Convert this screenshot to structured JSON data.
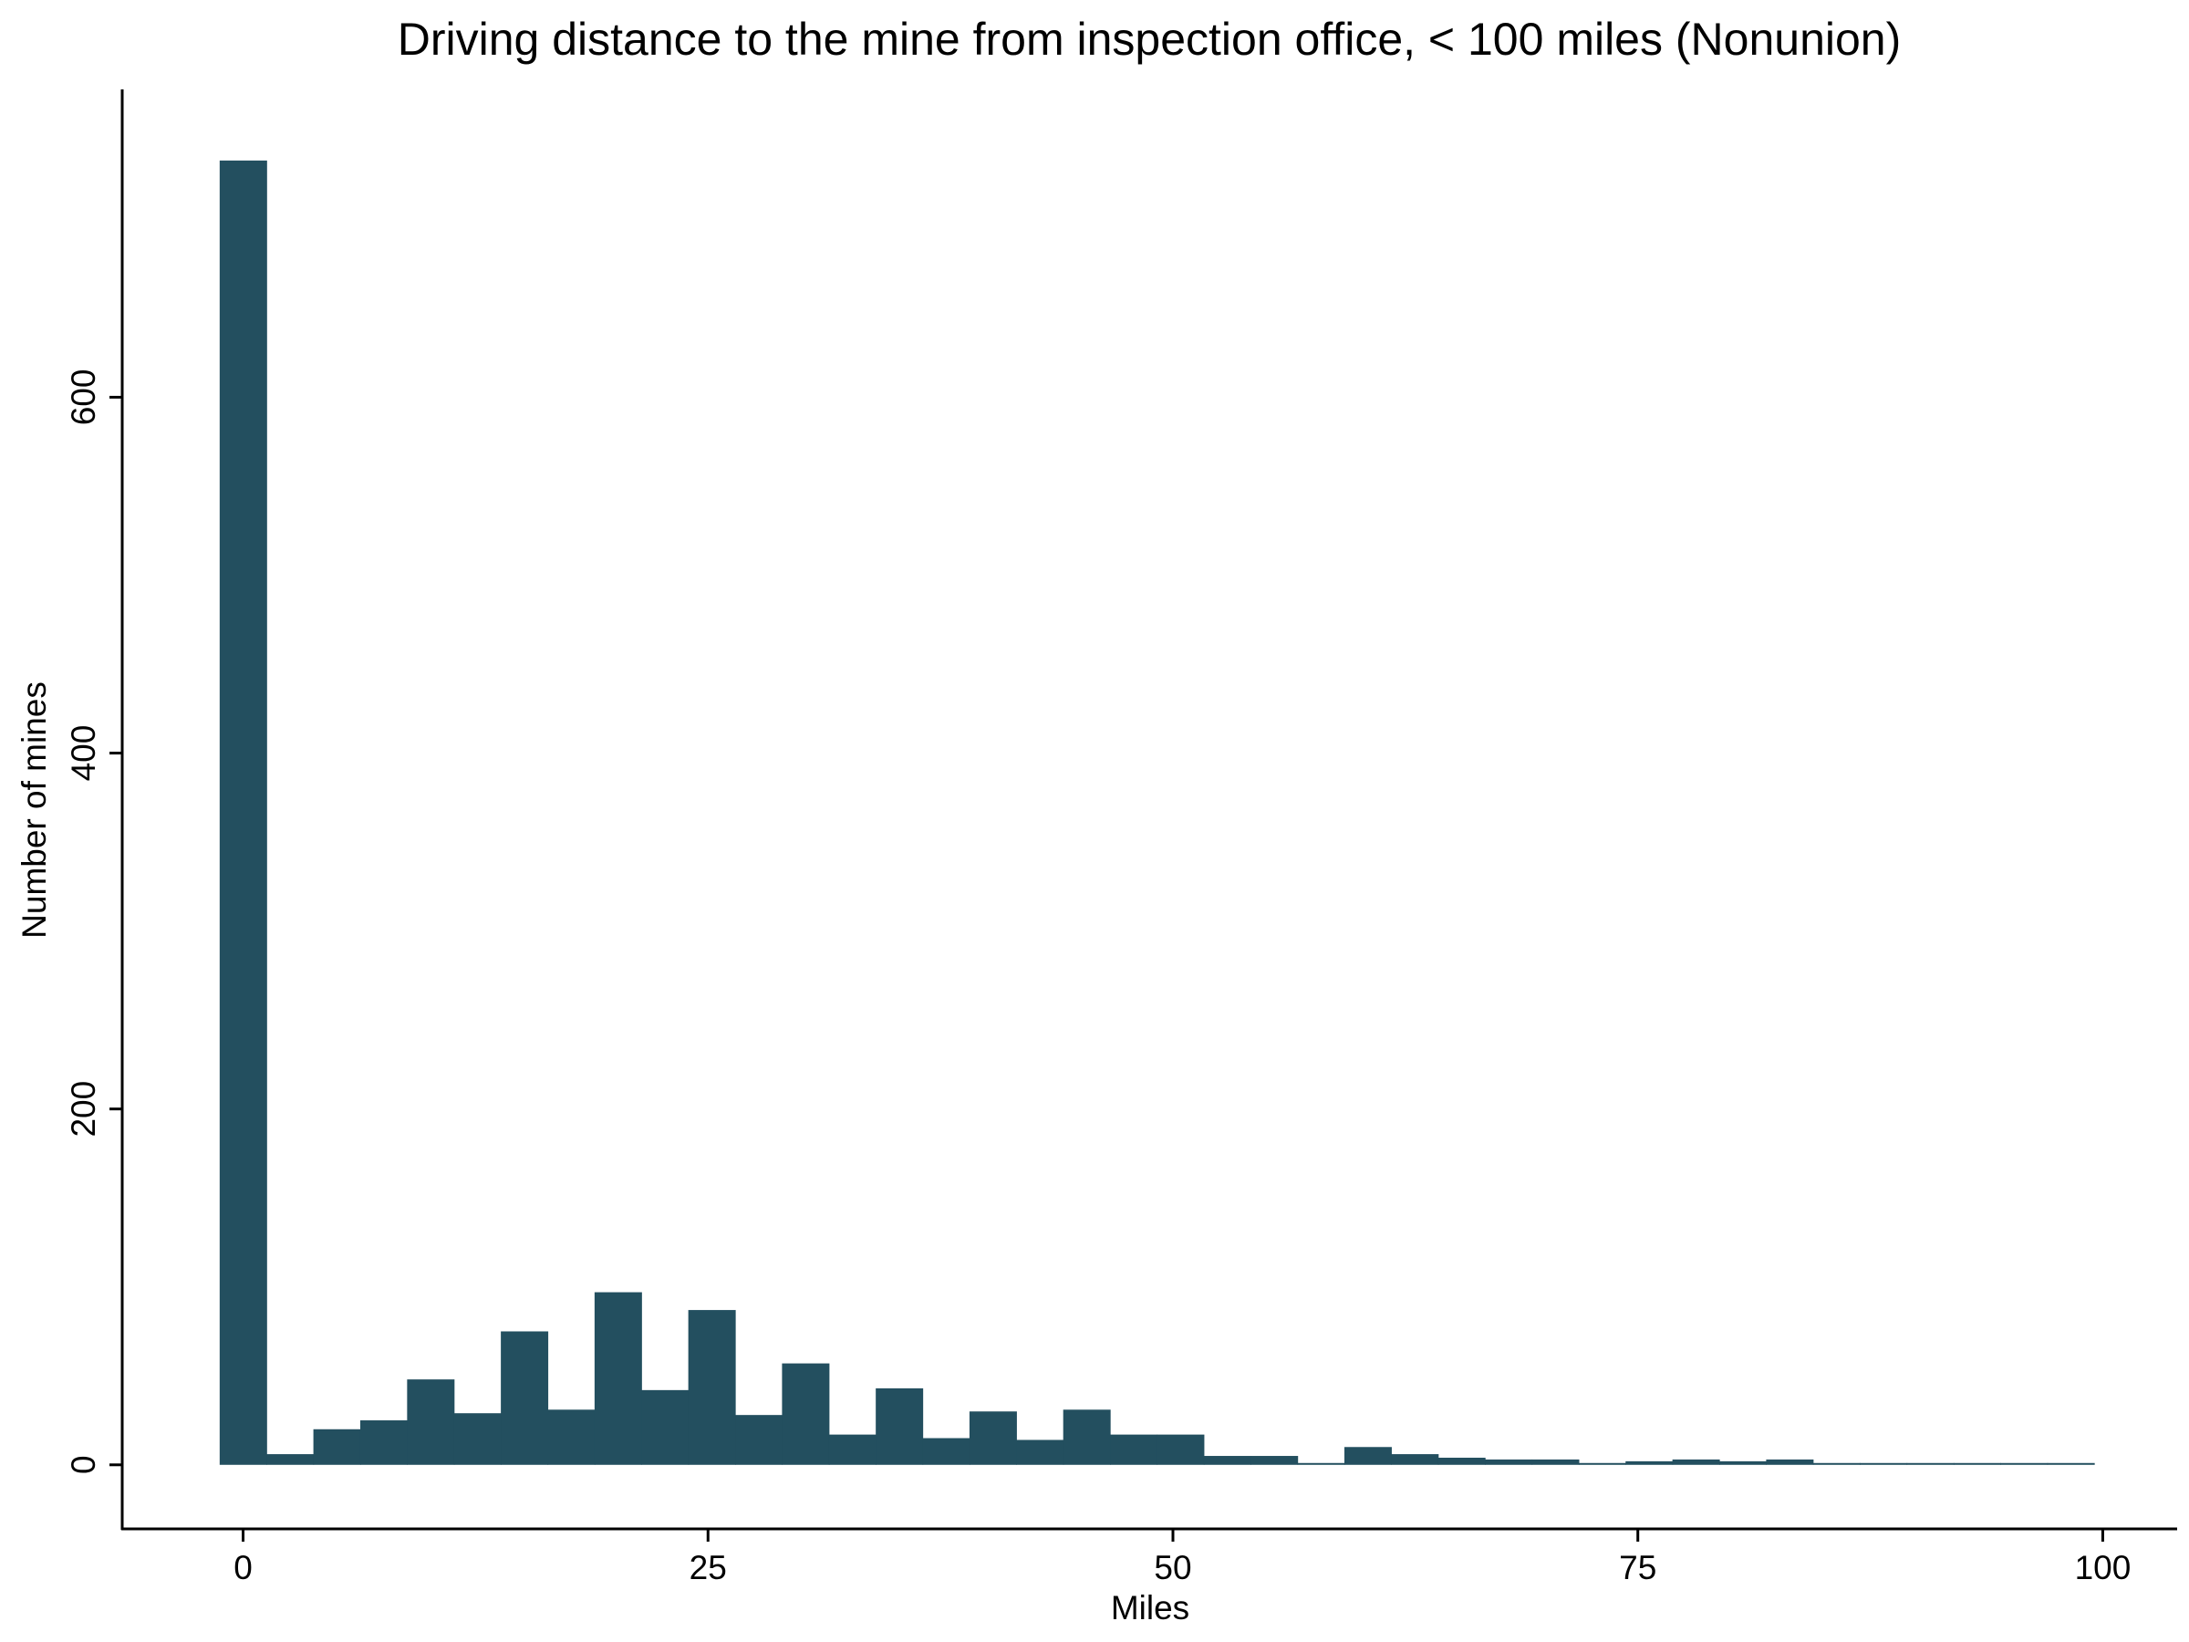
{
  "chart_data": {
    "type": "bar",
    "title": "Driving distance to the mine from inspection office, < 100 miles (Nonunion)",
    "xlabel": "Miles",
    "ylabel": "Number of mines",
    "xlim": [
      -6.5,
      104
    ],
    "ylim": [
      -36,
      773
    ],
    "xticks": [
      0,
      25,
      50,
      75,
      100
    ],
    "yticks": [
      0,
      200,
      400,
      600
    ],
    "grid": false,
    "bin_width": 2.52,
    "bar_color": "#234f5f",
    "bins": [
      {
        "x0": -1.26,
        "x1": 1.26,
        "count": 733
      },
      {
        "x0": 1.26,
        "x1": 3.78,
        "count": 6
      },
      {
        "x0": 3.78,
        "x1": 6.3,
        "count": 20
      },
      {
        "x0": 6.3,
        "x1": 8.82,
        "count": 25
      },
      {
        "x0": 8.82,
        "x1": 11.34,
        "count": 48
      },
      {
        "x0": 11.34,
        "x1": 13.86,
        "count": 29
      },
      {
        "x0": 13.86,
        "x1": 16.38,
        "count": 75
      },
      {
        "x0": 16.38,
        "x1": 18.9,
        "count": 31
      },
      {
        "x0": 18.9,
        "x1": 21.42,
        "count": 97
      },
      {
        "x0": 21.42,
        "x1": 23.94,
        "count": 42
      },
      {
        "x0": 23.94,
        "x1": 26.46,
        "count": 87
      },
      {
        "x0": 26.46,
        "x1": 28.98,
        "count": 28
      },
      {
        "x0": 28.98,
        "x1": 31.5,
        "count": 57
      },
      {
        "x0": 31.5,
        "x1": 34.02,
        "count": 17
      },
      {
        "x0": 34.02,
        "x1": 36.54,
        "count": 43
      },
      {
        "x0": 36.54,
        "x1": 39.06,
        "count": 15
      },
      {
        "x0": 39.06,
        "x1": 41.58,
        "count": 30
      },
      {
        "x0": 41.58,
        "x1": 44.1,
        "count": 14
      },
      {
        "x0": 44.1,
        "x1": 46.62,
        "count": 31
      },
      {
        "x0": 46.62,
        "x1": 49.14,
        "count": 17
      },
      {
        "x0": 49.14,
        "x1": 51.66,
        "count": 17
      },
      {
        "x0": 51.66,
        "x1": 54.18,
        "count": 5
      },
      {
        "x0": 54.18,
        "x1": 56.7,
        "count": 5
      },
      {
        "x0": 56.7,
        "x1": 59.22,
        "count": 0
      },
      {
        "x0": 59.22,
        "x1": 61.74,
        "count": 10
      },
      {
        "x0": 61.74,
        "x1": 64.26,
        "count": 6
      },
      {
        "x0": 64.26,
        "x1": 66.78,
        "count": 4
      },
      {
        "x0": 66.78,
        "x1": 69.3,
        "count": 3
      },
      {
        "x0": 69.3,
        "x1": 71.82,
        "count": 3
      },
      {
        "x0": 71.82,
        "x1": 74.34,
        "count": 1
      },
      {
        "x0": 74.34,
        "x1": 76.86,
        "count": 2
      },
      {
        "x0": 76.86,
        "x1": 79.38,
        "count": 3
      },
      {
        "x0": 79.38,
        "x1": 81.9,
        "count": 2
      },
      {
        "x0": 81.9,
        "x1": 84.42,
        "count": 3
      },
      {
        "x0": 84.42,
        "x1": 86.94,
        "count": 0
      },
      {
        "x0": 86.94,
        "x1": 89.46,
        "count": 1
      },
      {
        "x0": 89.46,
        "x1": 91.98,
        "count": 1
      },
      {
        "x0": 91.98,
        "x1": 94.5,
        "count": 0
      },
      {
        "x0": 94.5,
        "x1": 97.02,
        "count": 0
      },
      {
        "x0": 97.02,
        "x1": 99.54,
        "count": 1
      }
    ]
  }
}
